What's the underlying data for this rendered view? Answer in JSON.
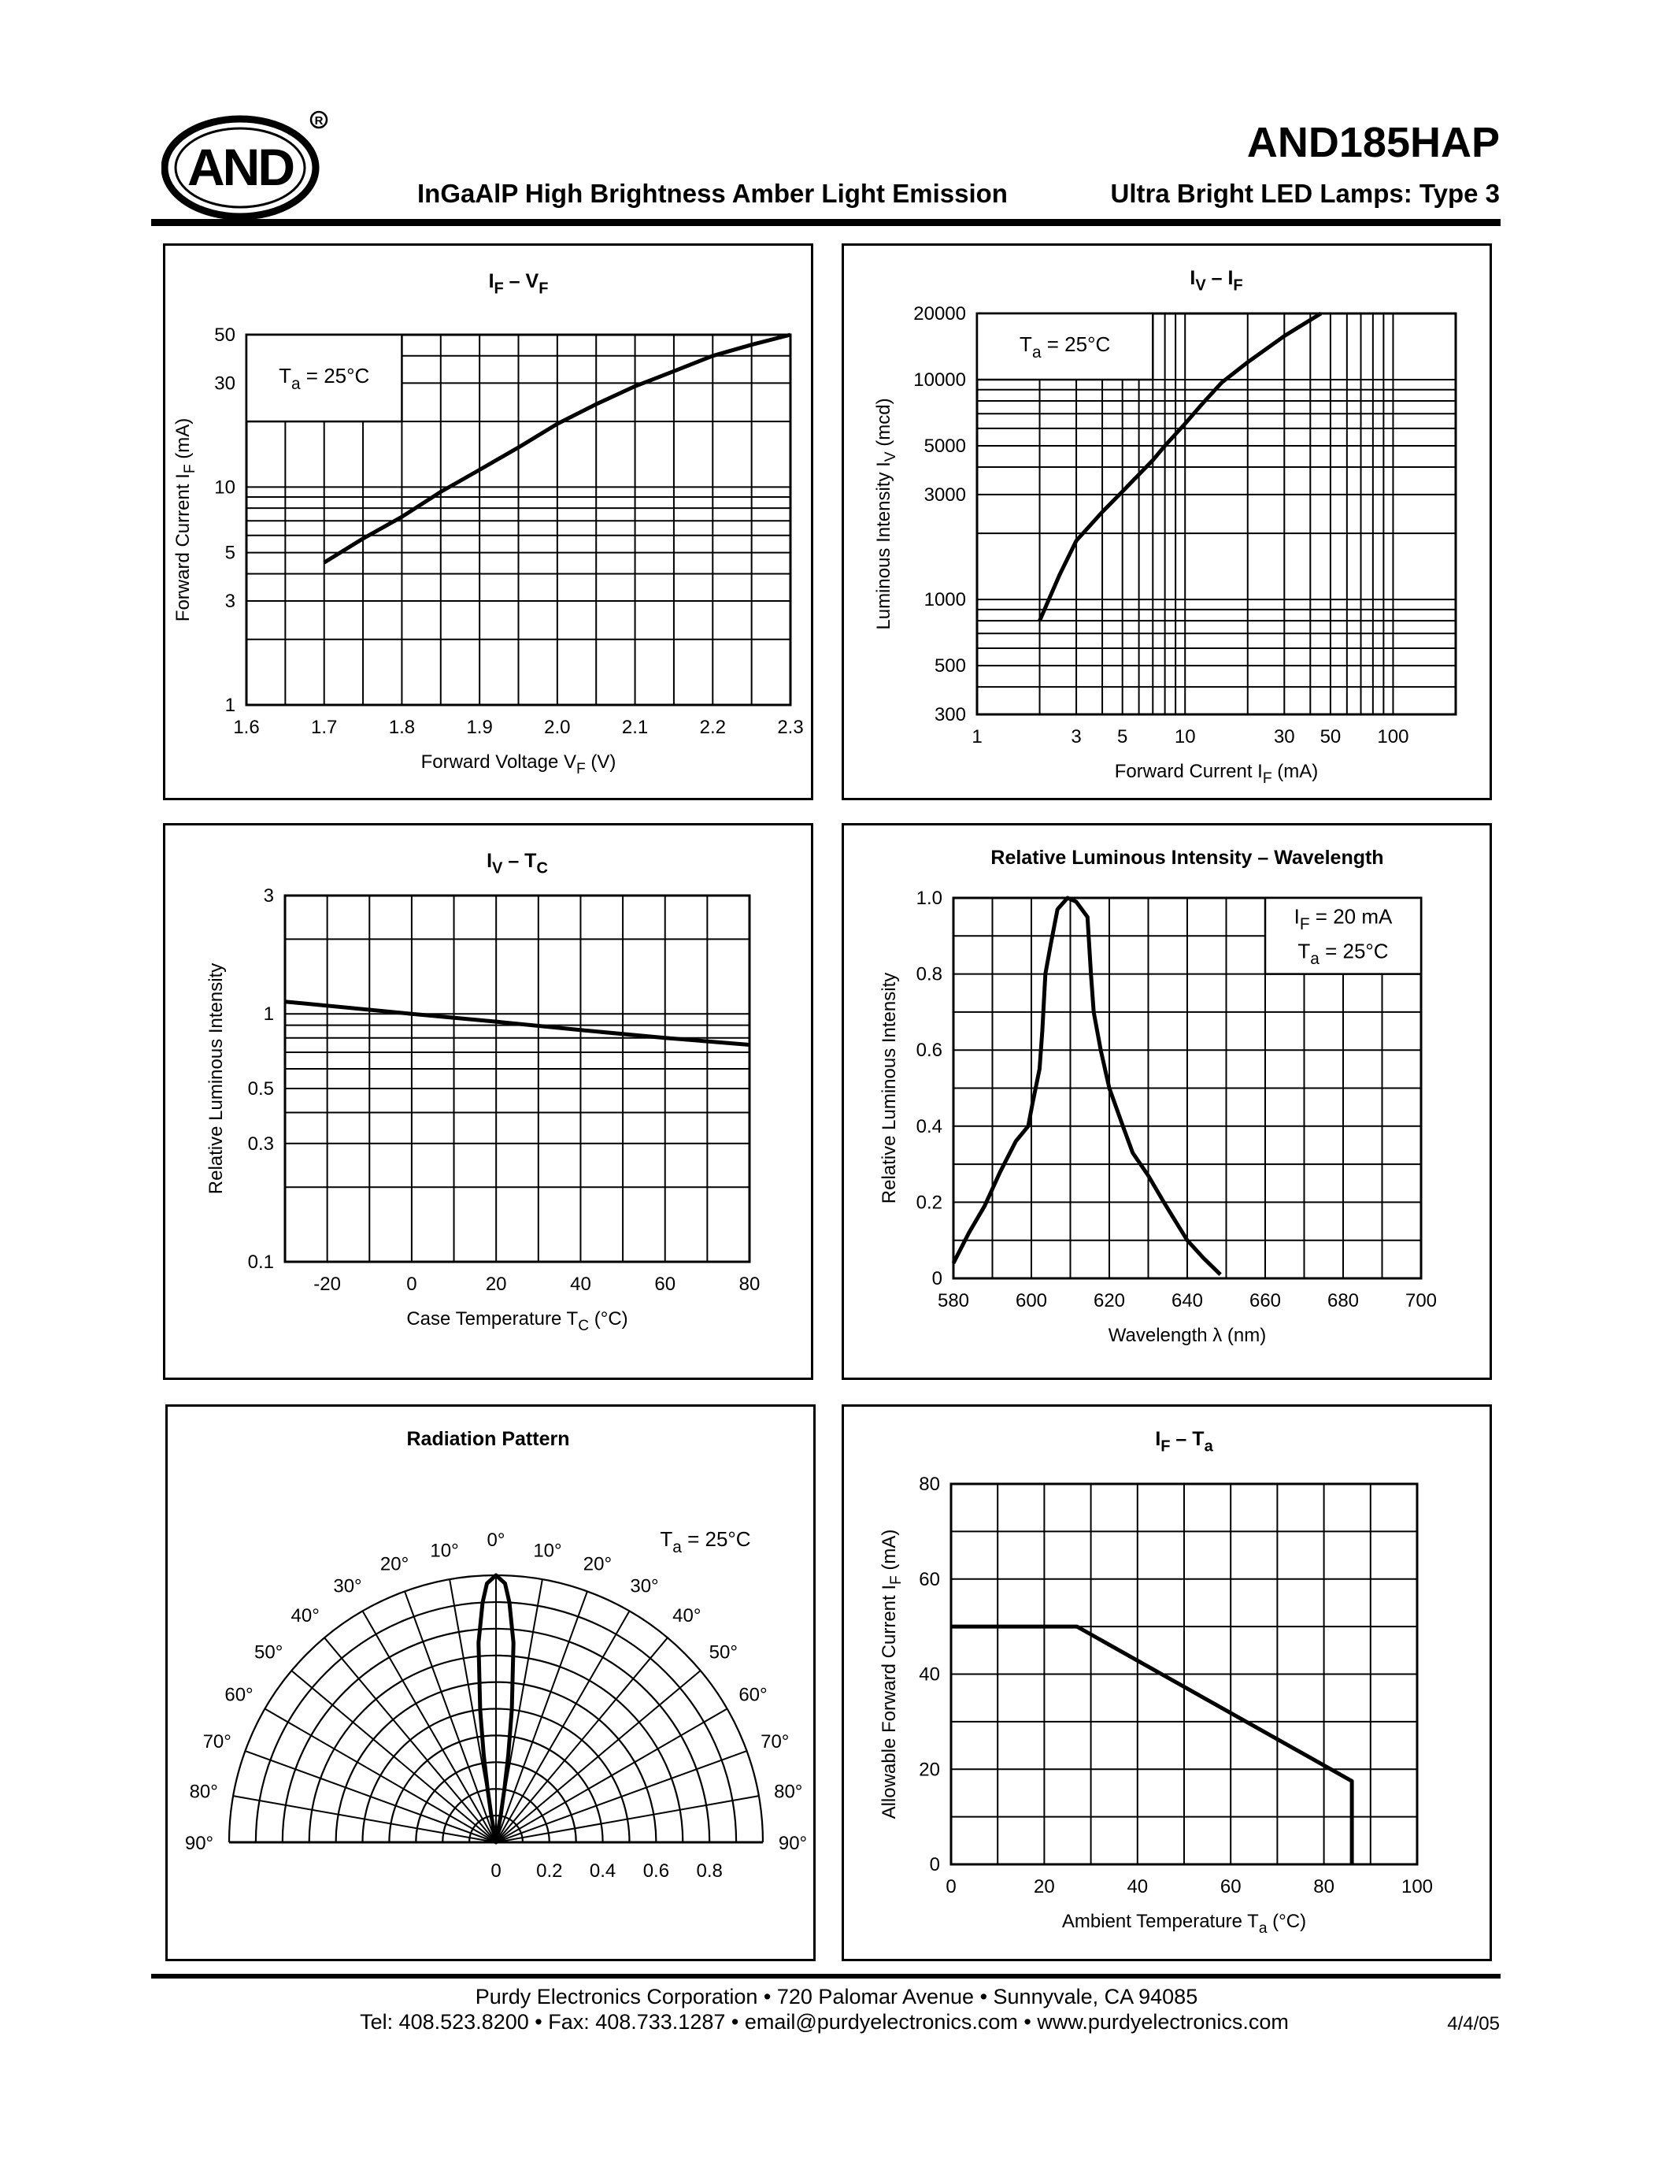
{
  "header": {
    "logo": {
      "text": "AND",
      "registered": "®"
    },
    "part_number": "AND185HAP",
    "subtitle_left": "InGaAlP High Brightness Amber Light Emission",
    "subtitle_right": "Ultra Bright LED Lamps: Type 3"
  },
  "footer": {
    "line1": "Purdy Electronics Corporation  •  720 Palomar Avenue  •  Sunnyvale, CA 94085",
    "line2": "Tel: 408.523.8200  •  Fax: 408.733.1287  •  email@purdyelectronics.com  •  www.purdyelectronics.com",
    "date": "4/4/05"
  },
  "chart_data": [
    {
      "type": "line",
      "title": [
        {
          "text": "I"
        },
        {
          "text": "F",
          "sub": true
        },
        {
          "text": " – V"
        },
        {
          "text": "F",
          "sub": true
        }
      ],
      "xlabel": [
        {
          "text": "Forward Voltage V"
        },
        {
          "text": "F",
          "sub": true
        },
        {
          "text": "  (V)"
        }
      ],
      "ylabel": [
        {
          "text": "Forward Current  I"
        },
        {
          "text": "F",
          "sub": true
        },
        {
          "text": "  (mA)"
        }
      ],
      "xscale": "linear",
      "yscale": "log",
      "xlim": [
        1.6,
        2.3
      ],
      "ylim": [
        1,
        50
      ],
      "xticks": [
        "1.6",
        "1.7",
        "1.8",
        "1.9",
        "2.0",
        "2.1",
        "2.2",
        "2.3"
      ],
      "yticks": [
        "1",
        "3",
        "5",
        "10",
        "30",
        "50"
      ],
      "grid": true,
      "annotation": {
        "box": {
          "x": [
            1.6,
            1.8
          ],
          "y": [
            20,
            50
          ]
        },
        "lines": [
          [
            {
              "text": "T"
            },
            {
              "text": "a",
              "sub": true
            },
            {
              "text": " = 25°C"
            }
          ]
        ]
      },
      "series": [
        {
          "points": [
            [
              1.7,
              4.5
            ],
            [
              1.75,
              5.8
            ],
            [
              1.8,
              7.3
            ],
            [
              1.85,
              9.5
            ],
            [
              1.9,
              12
            ],
            [
              1.95,
              15.2
            ],
            [
              2.0,
              19.5
            ],
            [
              2.05,
              24
            ],
            [
              2.1,
              29
            ],
            [
              2.15,
              34
            ],
            [
              2.2,
              40
            ],
            [
              2.25,
              45
            ],
            [
              2.3,
              50
            ]
          ]
        }
      ]
    },
    {
      "type": "line",
      "title": [
        {
          "text": "I"
        },
        {
          "text": "V",
          "sub": true
        },
        {
          "text": " – I"
        },
        {
          "text": "F",
          "sub": true
        }
      ],
      "xlabel": [
        {
          "text": "Forward Current I"
        },
        {
          "text": "F",
          "sub": true
        },
        {
          "text": "  (mA)"
        }
      ],
      "ylabel": [
        {
          "text": "Luminous Intensity  I"
        },
        {
          "text": "V",
          "sub": true
        },
        {
          "text": " (mcd)"
        }
      ],
      "xscale": "log",
      "yscale": "log",
      "xlim": [
        1,
        200
      ],
      "ylim": [
        300,
        20000
      ],
      "xticks": [
        "1",
        "3",
        "5",
        "10",
        "30",
        "50",
        "100"
      ],
      "yticks": [
        "300",
        "500",
        "1000",
        "3000",
        "5000",
        "10000",
        "20000"
      ],
      "grid": true,
      "annotation": {
        "box": {
          "x": [
            1,
            7
          ],
          "y": [
            10000,
            20000
          ]
        },
        "lines": [
          [
            {
              "text": "T"
            },
            {
              "text": "a",
              "sub": true
            },
            {
              "text": " = 25°C"
            }
          ]
        ]
      },
      "series": [
        {
          "points": [
            [
              2,
              800
            ],
            [
              2.5,
              1300
            ],
            [
              3,
              1850
            ],
            [
              4,
              2500
            ],
            [
              5,
              3100
            ],
            [
              7,
              4300
            ],
            [
              8,
              5000
            ],
            [
              10,
              6300
            ],
            [
              12,
              7700
            ],
            [
              15,
              9700
            ],
            [
              20,
              12000
            ],
            [
              30,
              15800
            ],
            [
              45,
              20000
            ]
          ]
        }
      ]
    },
    {
      "type": "line",
      "title": [
        {
          "text": "I"
        },
        {
          "text": "V",
          "sub": true
        },
        {
          "text": " – T"
        },
        {
          "text": "C",
          "sub": true
        }
      ],
      "xlabel": [
        {
          "text": "Case Temperature T"
        },
        {
          "text": "C",
          "sub": true
        },
        {
          "text": "  (°C)"
        }
      ],
      "ylabel": [
        {
          "text": "Relative Luminous Intensity"
        }
      ],
      "xscale": "linear",
      "yscale": "log",
      "xlim": [
        -30,
        80
      ],
      "ylim": [
        0.1,
        3
      ],
      "xticks": [
        "-20",
        "0",
        "20",
        "40",
        "60",
        "80"
      ],
      "yticks": [
        "0.1",
        "0.3",
        "0.5",
        "1",
        "3"
      ],
      "grid": true,
      "series": [
        {
          "points": [
            [
              -30,
              1.12
            ],
            [
              0,
              1.0
            ],
            [
              20,
              0.93
            ],
            [
              40,
              0.86
            ],
            [
              60,
              0.8
            ],
            [
              80,
              0.75
            ]
          ]
        }
      ]
    },
    {
      "type": "line",
      "title": [
        {
          "text": "Relative Luminous Intensity – Wavelength"
        }
      ],
      "xlabel": [
        {
          "text": "Wavelength  λ  (nm)"
        }
      ],
      "ylabel": [
        {
          "text": "Relative Luminous Intensity"
        }
      ],
      "xscale": "linear",
      "yscale": "linear",
      "xlim": [
        580,
        700
      ],
      "ylim": [
        0,
        1.0
      ],
      "xticks": [
        "580",
        "600",
        "620",
        "640",
        "660",
        "680",
        "700"
      ],
      "yticks": [
        "0",
        "0.2",
        "0.4",
        "0.6",
        "0.8",
        "1.0"
      ],
      "grid": true,
      "annotation": {
        "box": {
          "x": [
            660,
            700
          ],
          "y": [
            0.8,
            1.0
          ]
        },
        "lines": [
          [
            {
              "text": "I"
            },
            {
              "text": "F",
              "sub": true
            },
            {
              "text": " = 20 mA"
            }
          ],
          [
            {
              "text": "T"
            },
            {
              "text": "a",
              "sub": true
            },
            {
              "text": " = 25°C"
            }
          ]
        ]
      },
      "series": [
        {
          "points": [
            [
              580,
              0.04
            ],
            [
              584,
              0.12
            ],
            [
              588,
              0.19
            ],
            [
              592,
              0.28
            ],
            [
              596,
              0.36
            ],
            [
              599.2,
              0.4
            ],
            [
              600.3,
              0.46
            ],
            [
              602.1,
              0.55
            ],
            [
              602.8,
              0.65
            ],
            [
              603.6,
              0.8
            ],
            [
              605,
              0.88
            ],
            [
              606.7,
              0.97
            ],
            [
              609.3,
              1.0
            ],
            [
              611.5,
              0.99
            ],
            [
              614.4,
              0.95
            ],
            [
              615.3,
              0.8
            ],
            [
              616,
              0.7
            ],
            [
              617.8,
              0.6
            ],
            [
              620,
              0.5
            ],
            [
              623.5,
              0.4
            ],
            [
              626,
              0.33
            ],
            [
              630,
              0.27
            ],
            [
              634,
              0.2
            ],
            [
              637,
              0.15
            ],
            [
              640,
              0.1
            ],
            [
              644,
              0.055
            ],
            [
              648.5,
              0.01
            ]
          ]
        }
      ]
    },
    {
      "type": "polar",
      "title": [
        {
          "text": "Radiation Pattern"
        }
      ],
      "angle_range": [
        -90,
        90
      ],
      "angle_labels": [
        "0°",
        "10°",
        "20°",
        "30°",
        "40°",
        "50°",
        "60°",
        "70°",
        "80°",
        "90°"
      ],
      "rlim": [
        0,
        1.0
      ],
      "rticks": [
        "0",
        "0.2",
        "0.4",
        "0.6",
        "0.8"
      ],
      "grid": true,
      "annotation": {
        "lines": [
          [
            {
              "text": "T"
            },
            {
              "text": "a",
              "sub": true
            },
            {
              "text": " = 25°C"
            }
          ]
        ]
      },
      "series": [
        {
          "points": [
            [
              0,
              1.0
            ],
            [
              2,
              0.97
            ],
            [
              3.2,
              0.9
            ],
            [
              5,
              0.75
            ],
            [
              6.8,
              0.5
            ],
            [
              8,
              0.33
            ],
            [
              9,
              0.2
            ],
            [
              10,
              0.1
            ],
            [
              11,
              0
            ]
          ]
        }
      ]
    },
    {
      "type": "line",
      "title": [
        {
          "text": "I"
        },
        {
          "text": "F",
          "sub": true
        },
        {
          "text": " – T"
        },
        {
          "text": "a",
          "sub": true
        }
      ],
      "xlabel": [
        {
          "text": "Ambient Temperature  T"
        },
        {
          "text": "a",
          "sub": true
        },
        {
          "text": " (°C)"
        }
      ],
      "ylabel": [
        {
          "text": "Allowable Forward Current I"
        },
        {
          "text": "F",
          "sub": true
        },
        {
          "text": " (mA)"
        }
      ],
      "xscale": "linear",
      "yscale": "linear",
      "xlim": [
        0,
        100
      ],
      "ylim": [
        0,
        80
      ],
      "xticks": [
        "0",
        "20",
        "40",
        "60",
        "80",
        "100"
      ],
      "yticks": [
        "0",
        "20",
        "40",
        "60",
        "80"
      ],
      "grid": true,
      "series": [
        {
          "points": [
            [
              0,
              50
            ],
            [
              27,
              50
            ],
            [
              86,
              17.5
            ],
            [
              86,
              0
            ]
          ]
        }
      ]
    }
  ]
}
